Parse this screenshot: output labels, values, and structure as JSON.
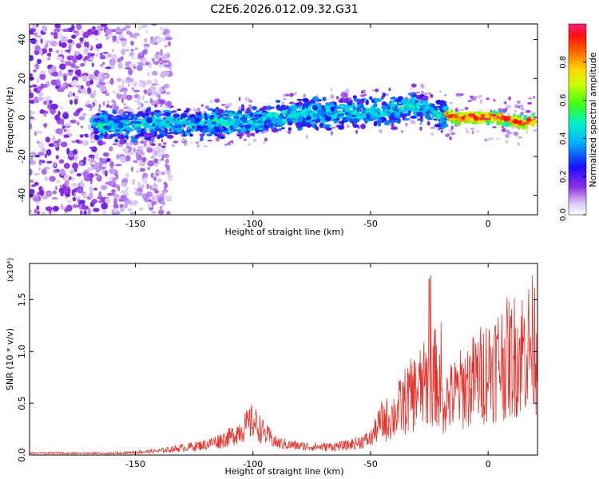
{
  "title": "C2E6.2026.012.09.32.G31",
  "colors": {
    "series": "#e8302a",
    "axis": "#000000"
  },
  "chart_data": [
    {
      "type": "heatmap",
      "xlabel": "Height of straight line (km)",
      "ylabel": "Frequency (Hz)",
      "xlim": [
        -195,
        21
      ],
      "ylim": [
        -50,
        48
      ],
      "xticks": [
        -150,
        -100,
        -50,
        0
      ],
      "yticks": [
        -40,
        -20,
        0,
        20,
        40
      ],
      "tick_labels_x": [
        "-150",
        "-100",
        "-50",
        "0"
      ],
      "tick_labels_y": [
        "-40",
        "-20",
        "0",
        "20",
        "40"
      ],
      "colorbar": {
        "label": "Normalized spectral amplitude",
        "range": [
          0,
          1
        ],
        "ticks": [
          0.0,
          0.2,
          0.4,
          0.6,
          0.8
        ],
        "tick_labels": [
          "0.0",
          "0.2",
          "0.4",
          "0.6",
          "0.8"
        ],
        "colormap": "rainbow"
      },
      "ridge": {
        "x": [
          -165,
          -150,
          -135,
          -120,
          -100,
          -90,
          -80,
          -70,
          -60,
          -50,
          -40,
          -30,
          -22,
          -15,
          -5,
          5,
          15,
          20
        ],
        "y": [
          -4,
          -4,
          -3,
          -3,
          -2,
          0,
          2,
          2,
          3,
          3,
          4,
          6,
          2,
          0,
          0,
          0,
          -3,
          -1
        ]
      },
      "grid": false
    },
    {
      "type": "line",
      "xlabel": "Height of straight line (km)",
      "ylabel": "SNR (10 * v/v)",
      "y_multiplier": "(x10⁴)",
      "xlim": [
        -195,
        21
      ],
      "ylim": [
        0,
        1.85
      ],
      "xticks": [
        -150,
        -100,
        -50,
        0
      ],
      "yticks": [
        0.0,
        0.5,
        1.0,
        1.5
      ],
      "tick_labels_x": [
        "-150",
        "-100",
        "-50",
        "0"
      ],
      "tick_labels_y": [
        "0.0",
        "0.5",
        "1.0",
        "1.5"
      ],
      "envelope": {
        "x": [
          -195,
          -160,
          -140,
          -130,
          -120,
          -110,
          -105,
          -100,
          -95,
          -90,
          -80,
          -70,
          -60,
          -50,
          -45,
          -40,
          -35,
          -30,
          -25,
          -22,
          -20,
          -15,
          -10,
          -5,
          0,
          5,
          10,
          15,
          20
        ],
        "y": [
          0.01,
          0.02,
          0.05,
          0.09,
          0.13,
          0.22,
          0.32,
          0.42,
          0.27,
          0.15,
          0.11,
          0.1,
          0.12,
          0.2,
          0.45,
          0.55,
          0.75,
          0.9,
          1.0,
          1.1,
          0.75,
          0.8,
          0.95,
          1.05,
          1.2,
          1.3,
          1.35,
          1.45,
          1.55
        ]
      },
      "grid": false
    }
  ]
}
